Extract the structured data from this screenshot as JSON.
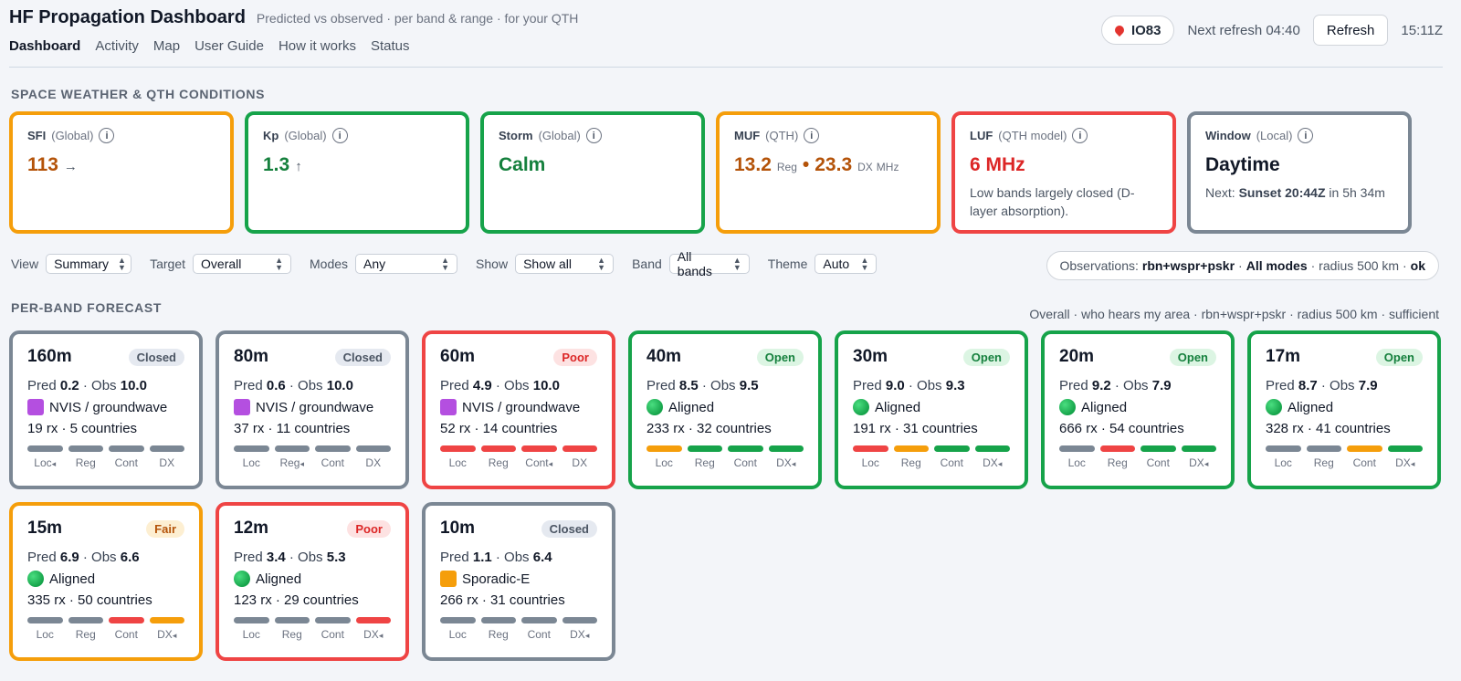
{
  "header": {
    "title": "HF Propagation Dashboard",
    "subtitle": "Predicted vs observed · per band & range · for your QTH",
    "nav": [
      "Dashboard",
      "Activity",
      "Map",
      "User Guide",
      "How it works",
      "Status"
    ],
    "qth": "IO83",
    "next_refresh": "Next refresh 04:40",
    "refresh_label": "Refresh",
    "clock": "15:11Z"
  },
  "space_weather": {
    "section_title": "SPACE WEATHER & QTH CONDITIONS",
    "cards": [
      {
        "label": "SFI",
        "scope": "(Global)",
        "value": "113",
        "arrow": "→",
        "note": "",
        "border": "#f59e0b",
        "color": "#b45309"
      },
      {
        "label": "Kp",
        "scope": "(Global)",
        "value": "1.3",
        "arrow": "↑",
        "note": "",
        "border": "#16a34a",
        "color": "#15803d"
      },
      {
        "label": "Storm",
        "scope": "(Global)",
        "value": "Calm",
        "arrow": "",
        "note": "",
        "border": "#16a34a",
        "color": "#15803d"
      },
      {
        "label": "MUF",
        "scope": "(QTH)",
        "value": "13.2",
        "value_unit": "Reg",
        "sep": "•",
        "value2": "23.3",
        "value2_unit": "DX",
        "unit": "MHz",
        "border": "#f59e0b",
        "color": "#b45309"
      },
      {
        "label": "LUF",
        "scope": "(QTH model)",
        "value": "6 MHz",
        "arrow": "",
        "note": "Low bands largely closed (D-layer absorption).",
        "border": "#ef4444",
        "color": "#dc2626"
      },
      {
        "label": "Window",
        "scope": "(Local)",
        "value": "Daytime",
        "arrow": "",
        "note_prefix": "Next: ",
        "note_bold": "Sunset 20:44Z",
        "note_suffix": " in 5h 34m",
        "border": "#7b8794",
        "color": "#111827"
      }
    ]
  },
  "controls": [
    {
      "label": "View",
      "value": "Summary",
      "width": 94
    },
    {
      "label": "Target",
      "value": "Overall",
      "width": 108
    },
    {
      "label": "Modes",
      "value": "Any",
      "width": 112
    },
    {
      "label": "Show",
      "value": "Show all",
      "width": 108
    },
    {
      "label": "Band",
      "value": "All bands",
      "width": 88
    },
    {
      "label": "Theme",
      "value": "Auto",
      "width": 68
    }
  ],
  "observations": {
    "prefix": "Observations: ",
    "sources": "rbn+wspr+pskr",
    "sep1": " · ",
    "modes": "All modes",
    "radius": " · radius 500 km · ",
    "status": "ok"
  },
  "forecast": {
    "section_title": "PER-BAND FORECAST",
    "meta": "Overall · who hears my area · rbn+wspr+pskr · radius 500 km · sufficient",
    "range_labels": [
      "Loc",
      "Reg",
      "Cont",
      "DX"
    ],
    "bands": [
      {
        "name": "160m",
        "status": "Closed",
        "pred": "0.2",
        "obs": "10.0",
        "mode_icon": "purple-square",
        "mode": "NVIS / groundwave",
        "rx": "19 rx · 5 countries",
        "bars": [
          "gray",
          "gray",
          "gray",
          "gray"
        ],
        "marker": 0
      },
      {
        "name": "80m",
        "status": "Closed",
        "pred": "0.6",
        "obs": "10.0",
        "mode_icon": "purple-square",
        "mode": "NVIS / groundwave",
        "rx": "37 rx · 11 countries",
        "bars": [
          "gray",
          "gray",
          "gray",
          "gray"
        ],
        "marker": 1
      },
      {
        "name": "60m",
        "status": "Poor",
        "pred": "4.9",
        "obs": "10.0",
        "mode_icon": "purple-square",
        "mode": "NVIS / groundwave",
        "rx": "52 rx · 14 countries",
        "bars": [
          "red",
          "red",
          "red",
          "red"
        ],
        "marker": 2
      },
      {
        "name": "40m",
        "status": "Open",
        "pred": "8.5",
        "obs": "9.5",
        "mode_icon": "green-circle",
        "mode": "Aligned",
        "rx": "233 rx · 32 countries",
        "bars": [
          "orange",
          "green",
          "green",
          "green"
        ],
        "marker": 3
      },
      {
        "name": "30m",
        "status": "Open",
        "pred": "9.0",
        "obs": "9.3",
        "mode_icon": "green-circle",
        "mode": "Aligned",
        "rx": "191 rx · 31 countries",
        "bars": [
          "red",
          "orange",
          "green",
          "green"
        ],
        "marker": 3
      },
      {
        "name": "20m",
        "status": "Open",
        "pred": "9.2",
        "obs": "7.9",
        "mode_icon": "green-circle",
        "mode": "Aligned",
        "rx": "666 rx · 54 countries",
        "bars": [
          "gray",
          "red",
          "green",
          "green"
        ],
        "marker": 3
      },
      {
        "name": "17m",
        "status": "Open",
        "pred": "8.7",
        "obs": "7.9",
        "mode_icon": "green-circle",
        "mode": "Aligned",
        "rx": "328 rx · 41 countries",
        "bars": [
          "gray",
          "gray",
          "orange",
          "green"
        ],
        "marker": 3
      },
      {
        "name": "15m",
        "status": "Fair",
        "pred": "6.9",
        "obs": "6.6",
        "mode_icon": "green-circle",
        "mode": "Aligned",
        "rx": "335 rx · 50 countries",
        "bars": [
          "gray",
          "gray",
          "red",
          "orange"
        ],
        "marker": 3
      },
      {
        "name": "12m",
        "status": "Poor",
        "pred": "3.4",
        "obs": "5.3",
        "mode_icon": "green-circle",
        "mode": "Aligned",
        "rx": "123 rx · 29 countries",
        "bars": [
          "gray",
          "gray",
          "gray",
          "red"
        ],
        "marker": 3
      },
      {
        "name": "10m",
        "status": "Closed",
        "pred": "1.1",
        "obs": "6.4",
        "mode_icon": "orange-square",
        "mode": "Sporadic-E",
        "rx": "266 rx · 31 countries",
        "bars": [
          "gray",
          "gray",
          "gray",
          "gray"
        ],
        "marker": 3
      }
    ]
  },
  "colors": {
    "gray": "#7b8794",
    "red": "#ef4444",
    "orange": "#f59e0b",
    "green": "#16a34a",
    "badge_closed_bg": "#e5e9f0",
    "badge_closed_fg": "#4b5563",
    "badge_poor_bg": "#fde2e2",
    "badge_poor_fg": "#dc2626",
    "badge_open_bg": "#dcf5e3",
    "badge_open_fg": "#15803d",
    "badge_fair_bg": "#fdefd2",
    "badge_fair_fg": "#b45309"
  }
}
